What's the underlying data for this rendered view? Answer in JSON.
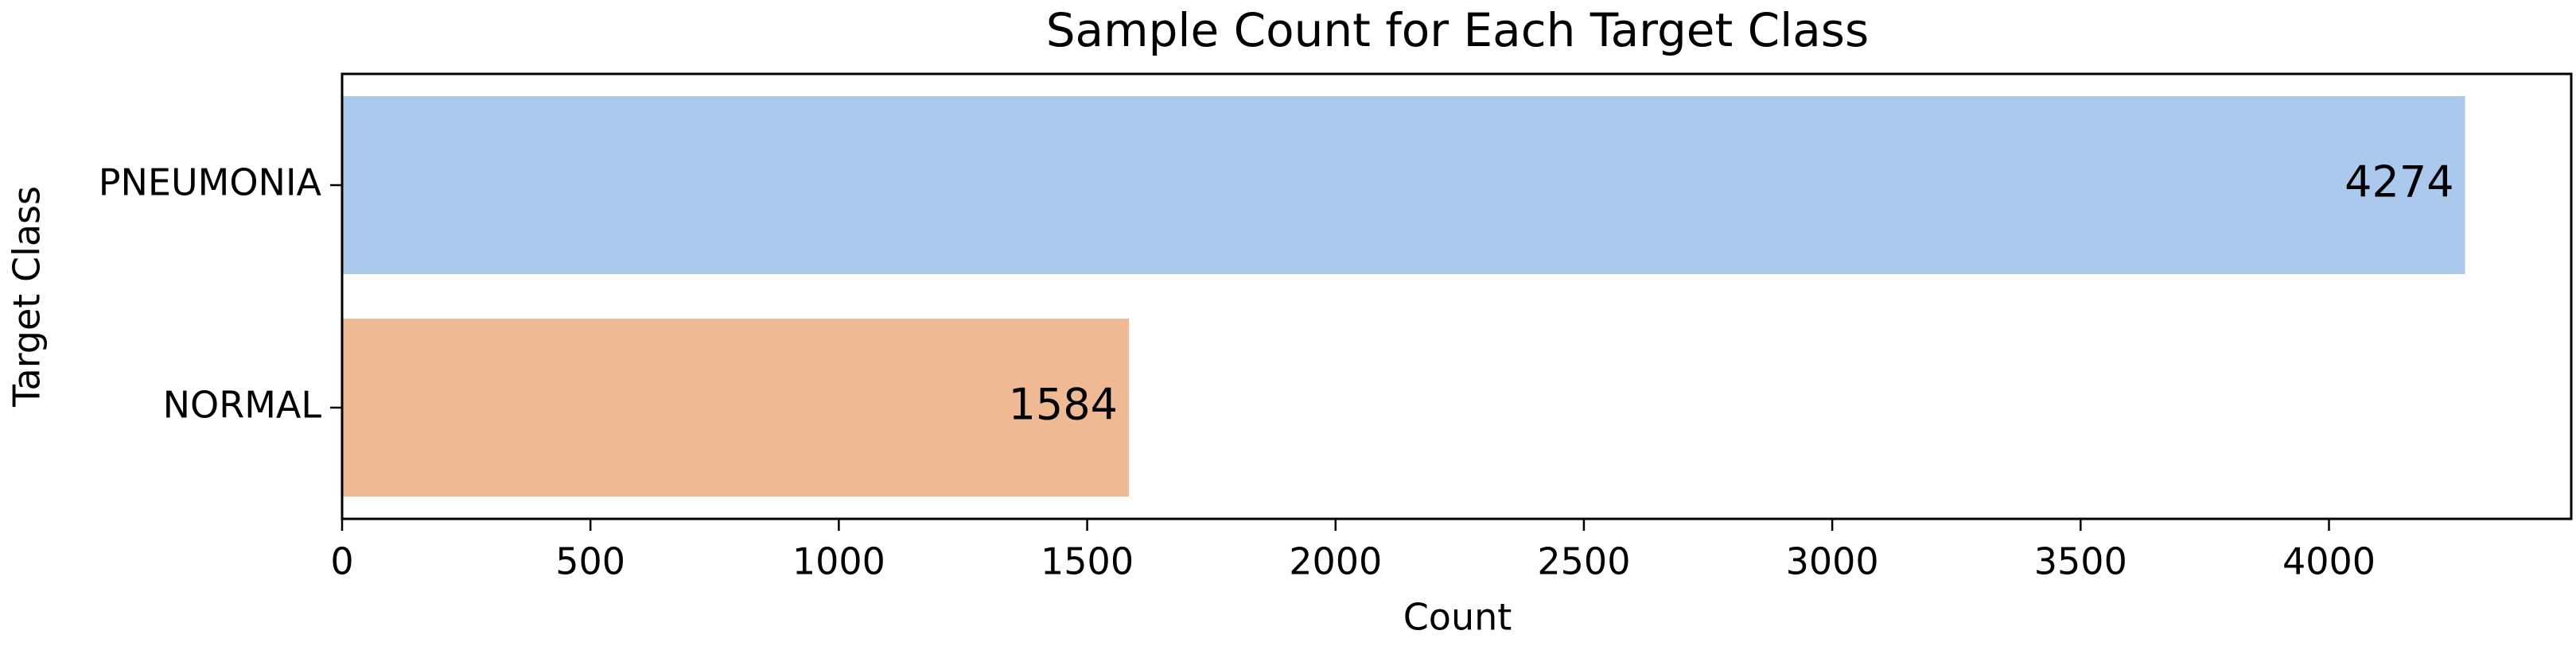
{
  "chart_data": {
    "type": "barh",
    "title": "Sample Count for Each Target Class",
    "categories": [
      "PNEUMONIA",
      "NORMAL"
    ],
    "values": [
      4274,
      1584
    ],
    "colors": [
      "#abc9ec",
      "#efb994"
    ],
    "xlabel": "Count",
    "ylabel": "Target Class",
    "xlim": [
      0,
      4487.7
    ],
    "xticks": [
      0,
      500,
      1000,
      1500,
      2000,
      2500,
      3000,
      3500,
      4000
    ]
  }
}
